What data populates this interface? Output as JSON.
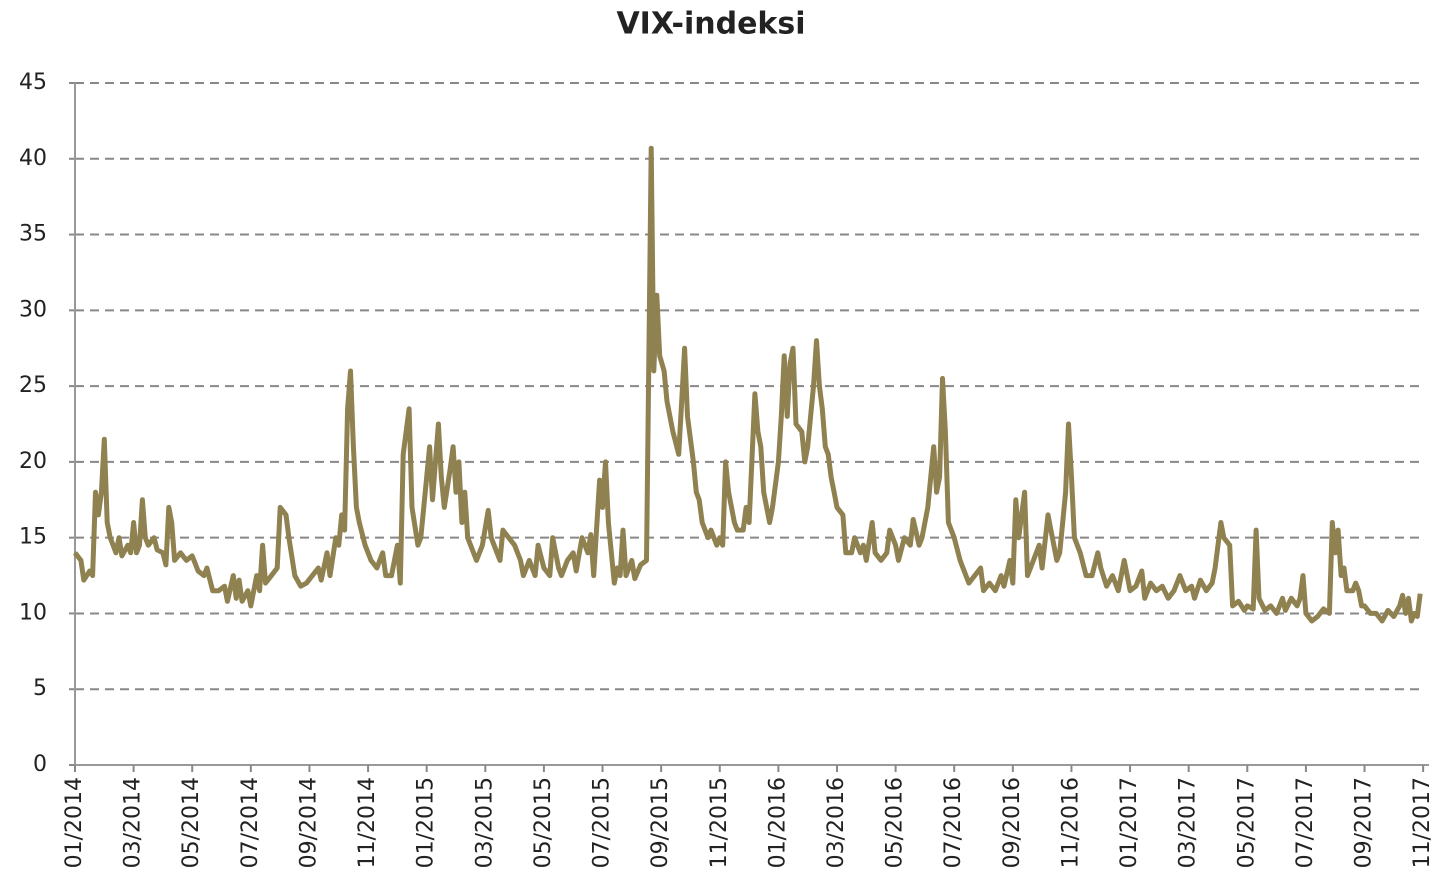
{
  "chart_data": {
    "type": "line",
    "title": "VIX-indeksi",
    "x": [
      0,
      0.2,
      0.3,
      0.5,
      0.6,
      0.7,
      0.8,
      0.9,
      1.0,
      1.1,
      1.2,
      1.4,
      1.5,
      1.6,
      1.8,
      1.9,
      2.0,
      2.1,
      2.2,
      2.3,
      2.4,
      2.5,
      2.7,
      2.8,
      3.0,
      3.1,
      3.2,
      3.3,
      3.4,
      3.6,
      3.8,
      4.0,
      4.2,
      4.4,
      4.5,
      4.7,
      4.9,
      5.1,
      5.2,
      5.4,
      5.5,
      5.6,
      5.7,
      5.9,
      6.0,
      6.2,
      6.3,
      6.4,
      6.5,
      6.7,
      6.9,
      7.0,
      7.2,
      7.3,
      7.5,
      7.7,
      7.9,
      8.1,
      8.3,
      8.4,
      8.6,
      8.7,
      8.9,
      9.0,
      9.1,
      9.2,
      9.3,
      9.4,
      9.5,
      9.6,
      9.7,
      9.9,
      10.1,
      10.3,
      10.5,
      10.6,
      10.8,
      11.0,
      11.1,
      11.2,
      11.4,
      11.5,
      11.7,
      11.8,
      12.0,
      12.1,
      12.2,
      12.4,
      12.5,
      12.6,
      12.8,
      12.9,
      13.0,
      13.1,
      13.2,
      13.3,
      13.4,
      13.5,
      13.7,
      13.9,
      14.1,
      14.2,
      14.4,
      14.5,
      14.6,
      14.8,
      15.0,
      15.2,
      15.3,
      15.5,
      15.7,
      15.8,
      16.0,
      16.2,
      16.3,
      16.5,
      16.6,
      16.8,
      17.0,
      17.1,
      17.3,
      17.5,
      17.6,
      17.7,
      17.9,
      18.0,
      18.1,
      18.2,
      18.4,
      18.5,
      18.6,
      18.7,
      18.8,
      19.0,
      19.1,
      19.3,
      19.5,
      19.6,
      19.66,
      19.75,
      19.85,
      19.95,
      20.1,
      20.2,
      20.3,
      20.4,
      20.6,
      20.7,
      20.8,
      20.9,
      21.1,
      21.2,
      21.3,
      21.4,
      21.6,
      21.7,
      21.9,
      22.0,
      22.1,
      22.2,
      22.3,
      22.5,
      22.6,
      22.8,
      22.9,
      23.0,
      23.2,
      23.3,
      23.4,
      23.5,
      23.7,
      23.8,
      24.0,
      24.1,
      24.2,
      24.3,
      24.4,
      24.5,
      24.6,
      24.8,
      24.9,
      25.0,
      25.1,
      25.2,
      25.3,
      25.4,
      25.5,
      25.6,
      25.7,
      25.8,
      25.9,
      26.0,
      26.2,
      26.3,
      26.5,
      26.6,
      26.8,
      26.9,
      27.0,
      27.2,
      27.3,
      27.5,
      27.7,
      27.8,
      28.0,
      28.1,
      28.3,
      28.5,
      28.6,
      28.8,
      28.9,
      29.1,
      29.3,
      29.4,
      29.5,
      29.6,
      29.7,
      29.8,
      30.0,
      30.2,
      30.3,
      30.5,
      30.7,
      30.9,
      31.0,
      31.2,
      31.4,
      31.6,
      31.7,
      31.9,
      32.0,
      32.1,
      32.2,
      32.4,
      32.5,
      32.7,
      32.9,
      33.0,
      33.2,
      33.3,
      33.5,
      33.6,
      33.7,
      33.8,
      33.9,
      34.0,
      34.1,
      34.3,
      34.5,
      34.7,
      34.9,
      35.0,
      35.2,
      35.4,
      35.6,
      35.8,
      36.0,
      36.2,
      36.4,
      36.5,
      36.7,
      36.9,
      37.1,
      37.3,
      37.5,
      37.7,
      37.9,
      38.1,
      38.2,
      38.4,
      38.6,
      38.8,
      38.9,
      39.0,
      39.1,
      39.2,
      39.4,
      39.5,
      39.7,
      39.9,
      40.0,
      40.2,
      40.3,
      40.4,
      40.6,
      40.8,
      41.0,
      41.2,
      41.3,
      41.5,
      41.7,
      41.8,
      41.9,
      42.0,
      42.2,
      42.4,
      42.6,
      42.8,
      42.9,
      43.0,
      43.1,
      43.2,
      43.3,
      43.4,
      43.6,
      43.7,
      43.8,
      43.9,
      44.0,
      44.2,
      44.4,
      44.6,
      44.8,
      45.0,
      45.2,
      45.3,
      45.4,
      45.5,
      45.6,
      45.7,
      45.8,
      45.9
    ],
    "series": [
      {
        "color": "#8f8150",
        "values": [
          14,
          13.5,
          12.2,
          12.8,
          12.5,
          18,
          16.5,
          18,
          21.5,
          16,
          15,
          14,
          15,
          13.8,
          14.5,
          14,
          16,
          14,
          14.5,
          17.5,
          15,
          14.5,
          15,
          14.2,
          14,
          13.2,
          17,
          16,
          13.5,
          14,
          13.5,
          13.8,
          12.8,
          12.5,
          13,
          11.5,
          11.5,
          11.8,
          10.8,
          12.5,
          11,
          12.2,
          10.8,
          11.5,
          10.5,
          12.5,
          11.5,
          14.5,
          12,
          12.5,
          13,
          17,
          16.5,
          15,
          12.5,
          11.8,
          12,
          12.5,
          13,
          12.2,
          14,
          12.5,
          15,
          14.5,
          16.5,
          15.5,
          23.5,
          26,
          21,
          17,
          16,
          14.5,
          13.5,
          13,
          14,
          12.5,
          12.5,
          14.5,
          12,
          20.5,
          23.5,
          17,
          14.5,
          15,
          19,
          21,
          17.5,
          22.5,
          19,
          17,
          19.5,
          21,
          18,
          20,
          16,
          18,
          15,
          14.5,
          13.5,
          14.5,
          16.8,
          15,
          14,
          13.5,
          15.5,
          15,
          14.5,
          13.5,
          12.5,
          13.5,
          12.5,
          14.5,
          13,
          12.5,
          15,
          13,
          12.5,
          13.5,
          14,
          12.8,
          15,
          14,
          15.2,
          12.5,
          18.8,
          17,
          20,
          16,
          12,
          13,
          12.5,
          15.5,
          12.5,
          13.5,
          12.3,
          13.2,
          13.5,
          30,
          40.7,
          26,
          31,
          27,
          26,
          24,
          23,
          22,
          20.5,
          24,
          27.5,
          23,
          20,
          18,
          17.5,
          16,
          15,
          15.5,
          14.5,
          15,
          14.5,
          20,
          18,
          16,
          15.5,
          15.5,
          17,
          16,
          24.5,
          22,
          21,
          18,
          16,
          17,
          20,
          23,
          27,
          23,
          26.5,
          27.5,
          22.5,
          22,
          20,
          21,
          23,
          25,
          28,
          25,
          23.5,
          21,
          20.5,
          19,
          18,
          17,
          16.5,
          14,
          14,
          15,
          14,
          14.5,
          13.5,
          16,
          14,
          13.5,
          14,
          15.5,
          14.5,
          13.5,
          15,
          14.5,
          16.2,
          14.5,
          15,
          17,
          21,
          18,
          19,
          25.5,
          22,
          16,
          15,
          13.5,
          13,
          12,
          12.5,
          13,
          11.5,
          12,
          11.5,
          12.5,
          11.8,
          13.5,
          12,
          17.5,
          15,
          18,
          12.5,
          13.5,
          14.5,
          13,
          16.5,
          15.5,
          13.5,
          14,
          16,
          18,
          22.5,
          19,
          15,
          14,
          12.5,
          12.5,
          14,
          13,
          11.8,
          12.5,
          11.5,
          13.5,
          11.5,
          11.8,
          12.8,
          11,
          12,
          11.5,
          11.8,
          11,
          11.5,
          12.5,
          11.5,
          11.8,
          11,
          12.2,
          11.5,
          12,
          13,
          14.5,
          16,
          15,
          14.5,
          10.5,
          10.8,
          10.2,
          10.5,
          10.3,
          15.5,
          11,
          10.2,
          10.5,
          10,
          11,
          10.2,
          11,
          10.5,
          11,
          12.5,
          10,
          9.5,
          9.8,
          10.3,
          10,
          16,
          14,
          15.5,
          12.5,
          13,
          11.5,
          11.5,
          12,
          11.5,
          10.5,
          10.5,
          10,
          10,
          9.5,
          10.2,
          9.8,
          10.5,
          11.2,
          10,
          11,
          9.5,
          10,
          9.8,
          11.3
        ]
      }
    ],
    "xlim": [
      0,
      46.2
    ],
    "xticks": [
      {
        "value": 0,
        "label": "01/2014"
      },
      {
        "value": 2,
        "label": "03/2014"
      },
      {
        "value": 4,
        "label": "05/2014"
      },
      {
        "value": 6,
        "label": "07/2014"
      },
      {
        "value": 8,
        "label": "09/2014"
      },
      {
        "value": 10,
        "label": "11/2014"
      },
      {
        "value": 12,
        "label": "01/2015"
      },
      {
        "value": 14,
        "label": "03/2015"
      },
      {
        "value": 16,
        "label": "05/2015"
      },
      {
        "value": 18,
        "label": "07/2015"
      },
      {
        "value": 20,
        "label": "09/2015"
      },
      {
        "value": 22,
        "label": "11/2015"
      },
      {
        "value": 24,
        "label": "01/2016"
      },
      {
        "value": 26,
        "label": "03/2016"
      },
      {
        "value": 28,
        "label": "05/2016"
      },
      {
        "value": 30,
        "label": "07/2016"
      },
      {
        "value": 32,
        "label": "09/2016"
      },
      {
        "value": 34,
        "label": "11/2016"
      },
      {
        "value": 36,
        "label": "01/2017"
      },
      {
        "value": 38,
        "label": "03/2017"
      },
      {
        "value": 40,
        "label": "05/2017"
      },
      {
        "value": 42,
        "label": "07/2017"
      },
      {
        "value": 44,
        "label": "09/2017"
      },
      {
        "value": 46,
        "label": "11/2017"
      }
    ],
    "ylim": [
      0,
      45
    ],
    "yticks": [
      0,
      5,
      10,
      15,
      20,
      25,
      30,
      35,
      40,
      45
    ],
    "grid": true
  }
}
